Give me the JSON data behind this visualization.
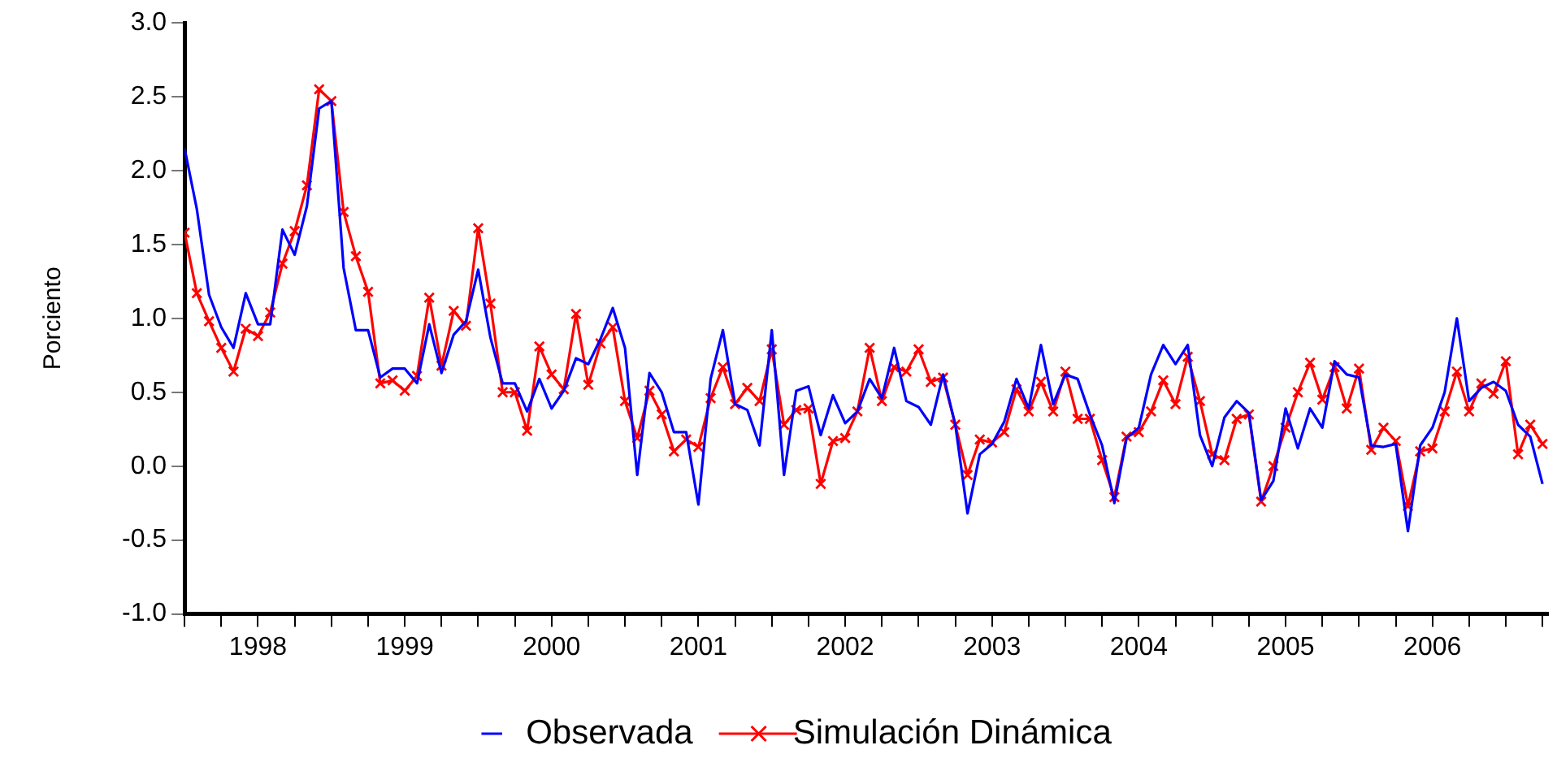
{
  "chart_data": {
    "type": "line",
    "ylabel": "Porciento",
    "legend": "bottom",
    "grid": false,
    "xlim": [
      "1998-01",
      "2007-04-15"
    ],
    "x": [
      "1998-01",
      "1998-02",
      "1998-03",
      "1998-04",
      "1998-05",
      "1998-06",
      "1998-07",
      "1998-08",
      "1998-09",
      "1998-10",
      "1998-11",
      "1998-12",
      "1999-01",
      "1999-02",
      "1999-03",
      "1999-04",
      "1999-05",
      "1999-06",
      "1999-07",
      "1999-08",
      "1999-09",
      "1999-10",
      "1999-11",
      "1999-12",
      "2000-01",
      "2000-02",
      "2000-03",
      "2000-04",
      "2000-05",
      "2000-06",
      "2000-07",
      "2000-08",
      "2000-09",
      "2000-10",
      "2000-11",
      "2000-12",
      "2001-01",
      "2001-02",
      "2001-03",
      "2001-04",
      "2001-05",
      "2001-06",
      "2001-07",
      "2001-08",
      "2001-09",
      "2001-10",
      "2001-11",
      "2001-12",
      "2002-01",
      "2002-02",
      "2002-03",
      "2002-04",
      "2002-05",
      "2002-06",
      "2002-07",
      "2002-08",
      "2002-09",
      "2002-10",
      "2002-11",
      "2002-12",
      "2003-01",
      "2003-02",
      "2003-03",
      "2003-04",
      "2003-05",
      "2003-06",
      "2003-07",
      "2003-08",
      "2003-09",
      "2003-10",
      "2003-11",
      "2003-12",
      "2004-01",
      "2004-02",
      "2004-03",
      "2004-04",
      "2004-05",
      "2004-06",
      "2004-07",
      "2004-08",
      "2004-09",
      "2004-10",
      "2004-11",
      "2004-12",
      "2005-01",
      "2005-02",
      "2005-03",
      "2005-04",
      "2005-05",
      "2005-06",
      "2005-07",
      "2005-08",
      "2005-09",
      "2005-10",
      "2005-11",
      "2005-12",
      "2006-01",
      "2006-02",
      "2006-03",
      "2006-04",
      "2006-05",
      "2006-06",
      "2006-07",
      "2006-08",
      "2006-09",
      "2006-10",
      "2006-11",
      "2006-12",
      "2007-01",
      "2007-02",
      "2007-03",
      "2007-04"
    ],
    "xticks": [
      {
        "value": "1998-01",
        "label": null
      },
      {
        "value": "1998-04",
        "label": null
      },
      {
        "value": "1998-07",
        "label": "1998"
      },
      {
        "value": "1998-10",
        "label": null
      },
      {
        "value": "1999-01",
        "label": null
      },
      {
        "value": "1999-04",
        "label": null
      },
      {
        "value": "1999-07",
        "label": "1999"
      },
      {
        "value": "1999-10",
        "label": null
      },
      {
        "value": "2000-01",
        "label": null
      },
      {
        "value": "2000-04",
        "label": null
      },
      {
        "value": "2000-07",
        "label": "2000"
      },
      {
        "value": "2000-10",
        "label": null
      },
      {
        "value": "2001-01",
        "label": null
      },
      {
        "value": "2001-04",
        "label": null
      },
      {
        "value": "2001-07",
        "label": "2001"
      },
      {
        "value": "2001-10",
        "label": null
      },
      {
        "value": "2002-01",
        "label": null
      },
      {
        "value": "2002-04",
        "label": null
      },
      {
        "value": "2002-07",
        "label": "2002"
      },
      {
        "value": "2002-10",
        "label": null
      },
      {
        "value": "2003-01",
        "label": null
      },
      {
        "value": "2003-04",
        "label": null
      },
      {
        "value": "2003-07",
        "label": "2003"
      },
      {
        "value": "2003-10",
        "label": null
      },
      {
        "value": "2004-01",
        "label": null
      },
      {
        "value": "2004-04",
        "label": null
      },
      {
        "value": "2004-07",
        "label": "2004"
      },
      {
        "value": "2004-10",
        "label": null
      },
      {
        "value": "2005-01",
        "label": null
      },
      {
        "value": "2005-04",
        "label": null
      },
      {
        "value": "2005-07",
        "label": "2005"
      },
      {
        "value": "2005-10",
        "label": null
      },
      {
        "value": "2006-01",
        "label": null
      },
      {
        "value": "2006-04",
        "label": null
      },
      {
        "value": "2006-07",
        "label": "2006"
      },
      {
        "value": "2006-10",
        "label": null
      },
      {
        "value": "2007-01",
        "label": null
      },
      {
        "value": "2007-04",
        "label": null
      }
    ],
    "ylim": [
      -1,
      3
    ],
    "yticks": [
      {
        "value": -1,
        "label": "-1.0"
      },
      {
        "value": -0.5,
        "label": "-0.5"
      },
      {
        "value": 0,
        "label": "0.0"
      },
      {
        "value": 0.5,
        "label": "0.5"
      },
      {
        "value": 1,
        "label": "1.0"
      },
      {
        "value": 1.5,
        "label": "1.5"
      },
      {
        "value": 2,
        "label": "2.0"
      },
      {
        "value": 2.5,
        "label": "2.5"
      },
      {
        "value": 3,
        "label": "3.0"
      }
    ],
    "series": [
      {
        "name": "Observada",
        "color": "#0000ff",
        "marker": "none",
        "values": [
          2.15,
          1.74,
          1.16,
          0.94,
          0.8,
          1.17,
          0.96,
          0.96,
          1.6,
          1.43,
          1.76,
          2.42,
          2.47,
          1.34,
          0.92,
          0.92,
          0.6,
          0.66,
          0.66,
          0.56,
          0.96,
          0.63,
          0.89,
          0.98,
          1.33,
          0.87,
          0.56,
          0.56,
          0.37,
          0.59,
          0.39,
          0.51,
          0.73,
          0.69,
          0.86,
          1.07,
          0.8,
          -0.06,
          0.63,
          0.5,
          0.23,
          0.23,
          -0.26,
          0.59,
          0.92,
          0.42,
          0.38,
          0.14,
          0.92,
          -0.06,
          0.51,
          0.54,
          0.21,
          0.48,
          0.29,
          0.37,
          0.59,
          0.46,
          0.8,
          0.44,
          0.4,
          0.28,
          0.62,
          0.28,
          -0.32,
          0.08,
          0.15,
          0.3,
          0.59,
          0.39,
          0.82,
          0.42,
          0.62,
          0.59,
          0.35,
          0.14,
          -0.25,
          0.19,
          0.26,
          0.62,
          0.82,
          0.69,
          0.82,
          0.21,
          0.0,
          0.33,
          0.44,
          0.36,
          -0.23,
          -0.1,
          0.39,
          0.12,
          0.39,
          0.26,
          0.71,
          0.62,
          0.6,
          0.14,
          0.13,
          0.15,
          -0.44,
          0.14,
          0.26,
          0.5,
          1.0,
          0.44,
          0.53,
          0.57,
          0.51,
          0.28,
          0.2,
          -0.12
        ]
      },
      {
        "name": "Simulación Dinámica",
        "color": "#ff0000",
        "marker": "cross",
        "values": [
          1.58,
          1.17,
          0.98,
          0.8,
          0.64,
          0.93,
          0.88,
          1.04,
          1.37,
          1.59,
          1.9,
          2.55,
          2.47,
          1.72,
          1.42,
          1.18,
          0.56,
          0.58,
          0.51,
          0.61,
          1.14,
          0.68,
          1.05,
          0.95,
          1.61,
          1.1,
          0.5,
          0.5,
          0.24,
          0.81,
          0.62,
          0.52,
          1.03,
          0.55,
          0.83,
          0.94,
          0.44,
          0.19,
          0.51,
          0.35,
          0.1,
          0.18,
          0.13,
          0.46,
          0.67,
          0.42,
          0.53,
          0.44,
          0.79,
          0.28,
          0.38,
          0.39,
          -0.12,
          0.17,
          0.19,
          0.37,
          0.8,
          0.44,
          0.67,
          0.64,
          0.79,
          0.57,
          0.6,
          0.28,
          -0.06,
          0.18,
          0.16,
          0.23,
          0.52,
          0.37,
          0.57,
          0.37,
          0.64,
          0.32,
          0.32,
          0.04,
          -0.21,
          0.2,
          0.23,
          0.37,
          0.58,
          0.42,
          0.74,
          0.44,
          0.08,
          0.04,
          0.32,
          0.35,
          -0.24,
          0.0,
          0.26,
          0.5,
          0.7,
          0.45,
          0.67,
          0.39,
          0.66,
          0.11,
          0.26,
          0.17,
          -0.27,
          0.1,
          0.12,
          0.37,
          0.64,
          0.37,
          0.56,
          0.49,
          0.71,
          0.08,
          0.28,
          0.15
        ]
      }
    ]
  }
}
